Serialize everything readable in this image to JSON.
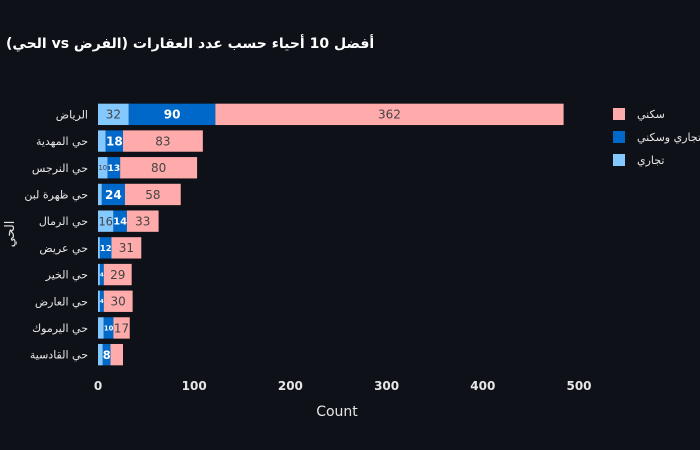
{
  "chart_data": {
    "type": "bar",
    "orientation": "horizontal",
    "barmode": "stack",
    "title": "أفضل 10 أحياء حسب عدد العقارات (الفرض vs الحي)",
    "xlabel": "Count",
    "ylabel": "الحي",
    "xlim": [
      0,
      500
    ],
    "xticks": [
      0,
      100,
      200,
      300,
      400,
      500
    ],
    "grid": false,
    "legend_position": "top-right",
    "categories": [
      "الرياض",
      "حي المهدية",
      "حي النرجس",
      "حي ظهرة لبن",
      "حي الرمال",
      "حي عريض",
      "حي الخير",
      "حي العارض",
      "حي اليرموك",
      "حي القادسية"
    ],
    "series": [
      {
        "name": "تجاري",
        "color": "#83c9ff",
        "values": [
          32,
          8,
          10,
          4,
          16,
          2,
          2,
          2,
          6,
          5
        ],
        "labels": [
          "32",
          "",
          "10",
          "",
          "16",
          "",
          "",
          "",
          "",
          ""
        ]
      },
      {
        "name": "تجاري وسكني",
        "color": "#0068c9",
        "values": [
          90,
          18,
          13,
          24,
          14,
          12,
          4,
          4,
          10,
          8
        ],
        "labels": [
          "90",
          "18",
          "13",
          "24",
          "14",
          "12",
          "4",
          "4",
          "10",
          "8"
        ]
      },
      {
        "name": "سكني",
        "color": "#ffabab",
        "values": [
          362,
          83,
          80,
          58,
          33,
          31,
          29,
          30,
          17,
          13
        ],
        "labels": [
          "362",
          "83",
          "80",
          "58",
          "33",
          "31",
          "29",
          "30",
          "17",
          ""
        ]
      }
    ],
    "legend_order": [
      "سكني",
      "تجاري وسكني",
      "تجاري"
    ]
  }
}
